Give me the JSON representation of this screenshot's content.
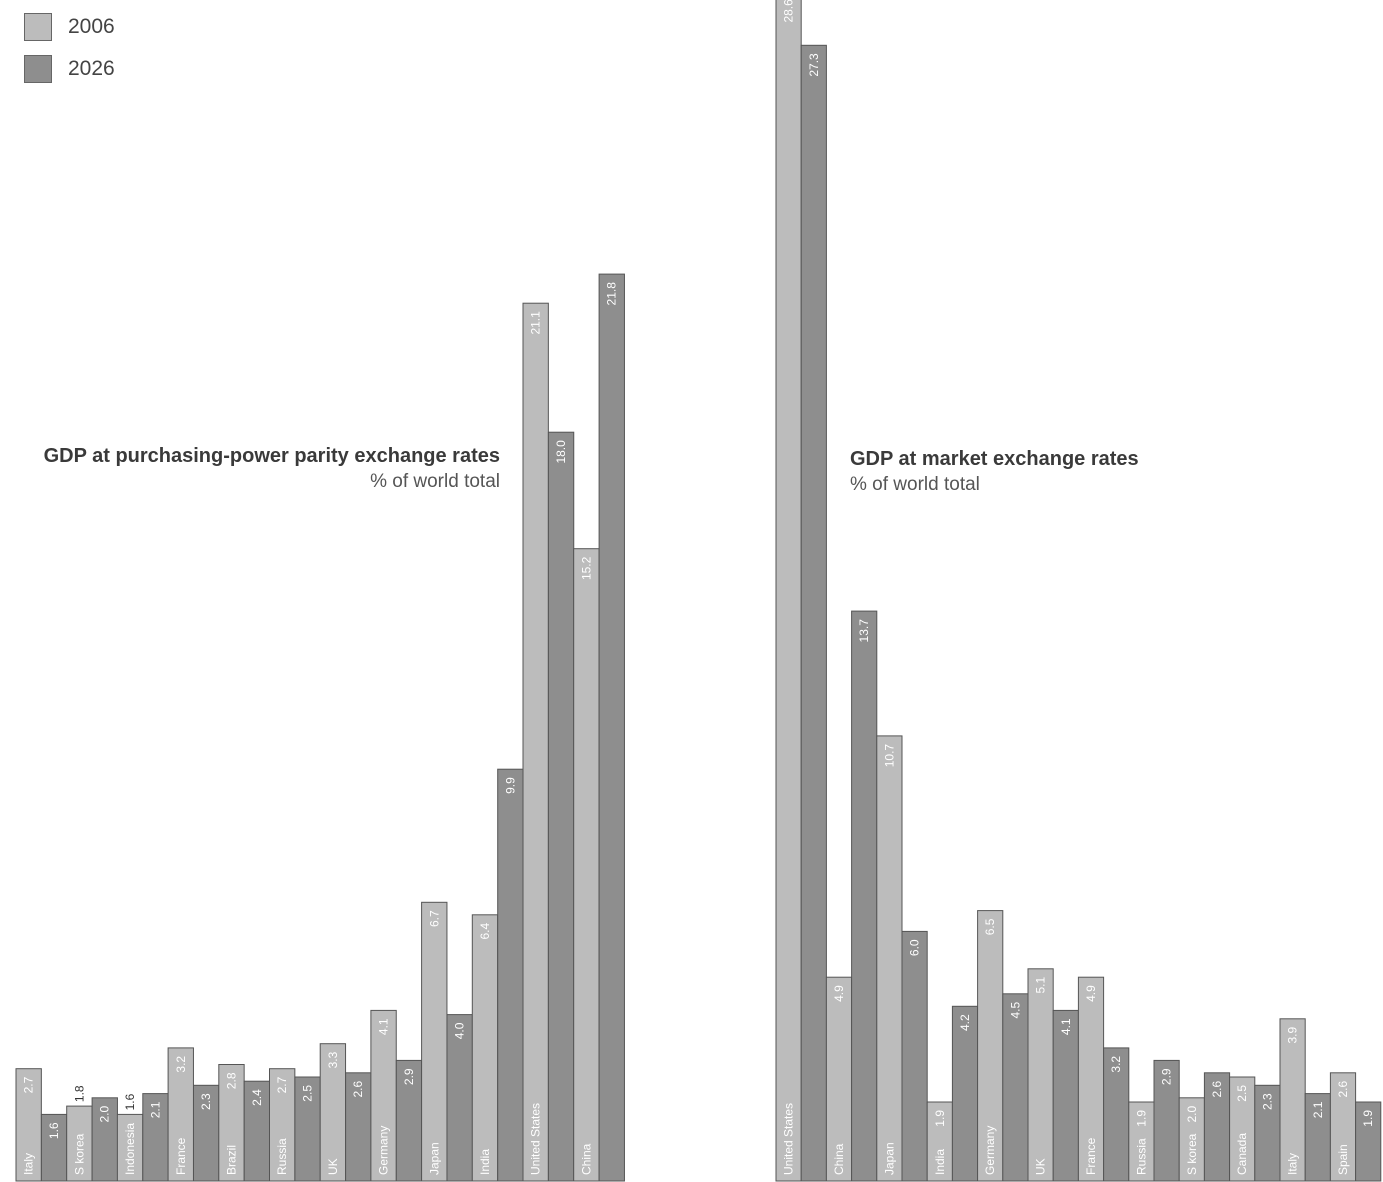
{
  "legend": [
    {
      "label": "2006",
      "color": "#bcbcbc"
    },
    {
      "label": "2026",
      "color": "#8e8e8e"
    }
  ],
  "chart_data": [
    {
      "type": "bar",
      "title": "GDP at purchasing-power parity exchange rates",
      "subtitle": "% of world total",
      "ylim": [
        0,
        28.6
      ],
      "bars": [
        {
          "country": "Italy",
          "year": "2006",
          "value": 2.7
        },
        {
          "country": "",
          "year": "2026",
          "value": 1.6
        },
        {
          "country": "S korea",
          "year": "2006",
          "value": 1.8
        },
        {
          "country": "",
          "year": "2026",
          "value": 2.0
        },
        {
          "country": "Indonesia",
          "year": "2006",
          "value": 1.6
        },
        {
          "country": "",
          "year": "2026",
          "value": 2.1
        },
        {
          "country": "France",
          "year": "2006",
          "value": 3.2
        },
        {
          "country": "",
          "year": "2026",
          "value": 2.3
        },
        {
          "country": "Brazil",
          "year": "2006",
          "value": 2.8
        },
        {
          "country": "",
          "year": "2026",
          "value": 2.4
        },
        {
          "country": "Russia",
          "year": "2006",
          "value": 2.7
        },
        {
          "country": "",
          "year": "2026",
          "value": 2.5
        },
        {
          "country": "UK",
          "year": "2006",
          "value": 3.3
        },
        {
          "country": "",
          "year": "2026",
          "value": 2.6
        },
        {
          "country": "Germany",
          "year": "2006",
          "value": 4.1
        },
        {
          "country": "",
          "year": "2026",
          "value": 2.9
        },
        {
          "country": "Japan",
          "year": "2006",
          "value": 6.7
        },
        {
          "country": "",
          "year": "2026",
          "value": 4.0
        },
        {
          "country": "India",
          "year": "2006",
          "value": 6.4
        },
        {
          "country": "",
          "year": "2026",
          "value": 9.9
        },
        {
          "country": "United States",
          "year": "2006",
          "value": 21.1
        },
        {
          "country": "",
          "year": "2026",
          "value": 18.0
        },
        {
          "country": "China",
          "year": "2006",
          "value": 15.2
        },
        {
          "country": "",
          "year": "2026",
          "value": 21.8
        }
      ]
    },
    {
      "type": "bar",
      "title": "GDP at market exchange rates",
      "subtitle": "% of world total",
      "ylim": [
        0,
        28.6
      ],
      "bars": [
        {
          "country": "United States",
          "year": "2006",
          "value": 28.6
        },
        {
          "country": "",
          "year": "2026",
          "value": 27.3
        },
        {
          "country": "China",
          "year": "2006",
          "value": 4.9
        },
        {
          "country": "",
          "year": "2026",
          "value": 13.7
        },
        {
          "country": "Japan",
          "year": "2006",
          "value": 10.7
        },
        {
          "country": "",
          "year": "2026",
          "value": 6.0
        },
        {
          "country": "India",
          "year": "2006",
          "value": 1.9
        },
        {
          "country": "",
          "year": "2026",
          "value": 4.2
        },
        {
          "country": "Germany",
          "year": "2006",
          "value": 6.5
        },
        {
          "country": "",
          "year": "2026",
          "value": 4.5
        },
        {
          "country": "UK",
          "year": "2006",
          "value": 5.1
        },
        {
          "country": "",
          "year": "2026",
          "value": 4.1
        },
        {
          "country": "France",
          "year": "2006",
          "value": 4.9
        },
        {
          "country": "",
          "year": "2026",
          "value": 3.2
        },
        {
          "country": "Russia",
          "year": "2006",
          "value": 1.9
        },
        {
          "country": "",
          "year": "2026",
          "value": 2.9
        },
        {
          "country": "S korea",
          "year": "2006",
          "value": 2.0
        },
        {
          "country": "",
          "year": "2026",
          "value": 2.6
        },
        {
          "country": "Canada",
          "year": "2006",
          "value": 2.5
        },
        {
          "country": "",
          "year": "2026",
          "value": 2.3
        },
        {
          "country": "Italy",
          "year": "2006",
          "value": 3.9
        },
        {
          "country": "",
          "year": "2026",
          "value": 2.1
        },
        {
          "country": "Spain",
          "year": "2006",
          "value": 2.6
        },
        {
          "country": "",
          "year": "2026",
          "value": 1.9
        }
      ]
    }
  ]
}
